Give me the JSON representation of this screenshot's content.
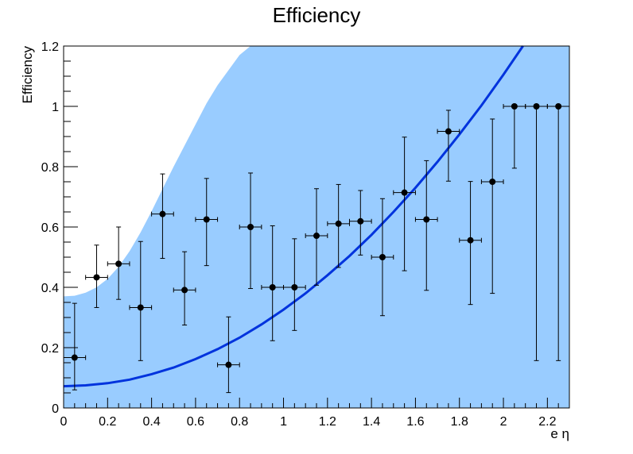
{
  "chart_data": {
    "type": "scatter",
    "title": "Efficiency",
    "xlabel": "e η",
    "ylabel": "Efficiency",
    "xlim": [
      0,
      2.3
    ],
    "ylim": [
      0,
      1.2
    ],
    "x_ticks": [
      "0",
      "0.2",
      "0.4",
      "0.6",
      "0.8",
      "1",
      "1.2",
      "1.4",
      "1.6",
      "1.8",
      "2",
      "2.2"
    ],
    "x_tick_values": [
      0,
      0.2,
      0.4,
      0.6,
      0.8,
      1.0,
      1.2,
      1.4,
      1.6,
      1.8,
      2.0,
      2.2
    ],
    "y_ticks": [
      "0",
      "0.2",
      "0.4",
      "0.6",
      "0.8",
      "1",
      "1.2"
    ],
    "y_tick_values": [
      0,
      0.2,
      0.4,
      0.6,
      0.8,
      1.0,
      1.2
    ],
    "grid": false,
    "x_bin_halfwidth": 0.05,
    "points": [
      {
        "x": 0.05,
        "y": 0.167,
        "yerr_low": 0.107,
        "yerr_high": 0.18
      },
      {
        "x": 0.15,
        "y": 0.433,
        "yerr_low": 0.1,
        "yerr_high": 0.107
      },
      {
        "x": 0.25,
        "y": 0.478,
        "yerr_low": 0.118,
        "yerr_high": 0.122
      },
      {
        "x": 0.35,
        "y": 0.333,
        "yerr_low": 0.176,
        "yerr_high": 0.219
      },
      {
        "x": 0.45,
        "y": 0.643,
        "yerr_low": 0.147,
        "yerr_high": 0.133
      },
      {
        "x": 0.55,
        "y": 0.391,
        "yerr_low": 0.116,
        "yerr_high": 0.127
      },
      {
        "x": 0.65,
        "y": 0.625,
        "yerr_low": 0.153,
        "yerr_high": 0.136
      },
      {
        "x": 0.75,
        "y": 0.143,
        "yerr_low": 0.092,
        "yerr_high": 0.159
      },
      {
        "x": 0.85,
        "y": 0.6,
        "yerr_low": 0.204,
        "yerr_high": 0.179
      },
      {
        "x": 0.95,
        "y": 0.4,
        "yerr_low": 0.177,
        "yerr_high": 0.204
      },
      {
        "x": 1.05,
        "y": 0.4,
        "yerr_low": 0.143,
        "yerr_high": 0.161
      },
      {
        "x": 1.15,
        "y": 0.571,
        "yerr_low": 0.164,
        "yerr_high": 0.156
      },
      {
        "x": 1.25,
        "y": 0.611,
        "yerr_low": 0.145,
        "yerr_high": 0.13
      },
      {
        "x": 1.35,
        "y": 0.619,
        "yerr_low": 0.112,
        "yerr_high": 0.102
      },
      {
        "x": 1.45,
        "y": 0.5,
        "yerr_low": 0.194,
        "yerr_high": 0.194
      },
      {
        "x": 1.55,
        "y": 0.714,
        "yerr_low": 0.259,
        "yerr_high": 0.184
      },
      {
        "x": 1.65,
        "y": 0.625,
        "yerr_low": 0.235,
        "yerr_high": 0.195
      },
      {
        "x": 1.75,
        "y": 0.917,
        "yerr_low": 0.165,
        "yerr_high": 0.07
      },
      {
        "x": 1.85,
        "y": 0.556,
        "yerr_low": 0.213,
        "yerr_high": 0.195
      },
      {
        "x": 1.95,
        "y": 0.75,
        "yerr_low": 0.37,
        "yerr_high": 0.208
      },
      {
        "x": 2.05,
        "y": 1.0,
        "yerr_low": 0.205,
        "yerr_high": 0.0
      },
      {
        "x": 2.15,
        "y": 1.0,
        "yerr_low": 0.843,
        "yerr_high": 0.0
      },
      {
        "x": 2.25,
        "y": 1.0,
        "yerr_low": 0.843,
        "yerr_high": 0.0
      }
    ],
    "fit_curve": {
      "x": [
        0,
        0.1,
        0.2,
        0.3,
        0.4,
        0.5,
        0.6,
        0.7,
        0.8,
        0.9,
        1.0,
        1.1,
        1.2,
        1.3,
        1.4,
        1.5,
        1.6,
        1.7,
        1.8,
        1.9,
        2.0,
        2.1,
        2.2,
        2.2
      ],
      "y": [
        0.072,
        0.075,
        0.082,
        0.094,
        0.112,
        0.134,
        0.162,
        0.195,
        0.233,
        0.277,
        0.326,
        0.38,
        0.44,
        0.504,
        0.574,
        0.65,
        0.73,
        0.816,
        0.907,
        1.003,
        1.105,
        1.212,
        1.212,
        1.212
      ]
    },
    "band": {
      "x": [
        0,
        0.05,
        0.1,
        0.15,
        0.2,
        0.25,
        0.3,
        0.35,
        0.4,
        0.45,
        0.5,
        0.55,
        0.6,
        0.65,
        0.7,
        0.75,
        0.8,
        0.85
      ],
      "upper": [
        0.37,
        0.372,
        0.382,
        0.4,
        0.428,
        0.468,
        0.52,
        0.582,
        0.652,
        0.726,
        0.8,
        0.87,
        0.94,
        1.01,
        1.07,
        1.12,
        1.17,
        1.2
      ],
      "lower": 0.0
    },
    "colors": {
      "band": "#99ccff",
      "fit": "#0033dd",
      "points": "#000000",
      "frame": "#000000",
      "background": "#ffffff"
    }
  }
}
